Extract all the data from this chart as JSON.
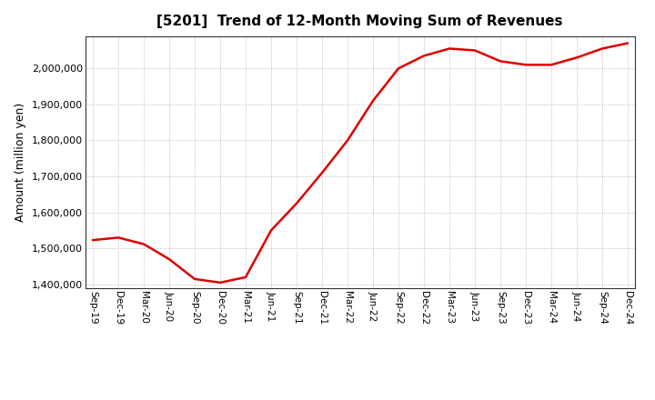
{
  "title": "[5201]  Trend of 12-Month Moving Sum of Revenues",
  "ylabel": "Amount (million yen)",
  "line_color": "#dd0000",
  "background_color": "#ffffff",
  "plot_bg_color": "#ffffff",
  "grid_color": "#999999",
  "ylim": [
    1390000,
    2090000
  ],
  "yticks": [
    1400000,
    1500000,
    1600000,
    1700000,
    1800000,
    1900000,
    2000000
  ],
  "x_labels": [
    "Sep-19",
    "Dec-19",
    "Mar-20",
    "Jun-20",
    "Sep-20",
    "Dec-20",
    "Mar-21",
    "Jun-21",
    "Sep-21",
    "Dec-21",
    "Mar-22",
    "Jun-22",
    "Sep-22",
    "Dec-22",
    "Mar-23",
    "Jun-23",
    "Sep-23",
    "Dec-23",
    "Mar-24",
    "Jun-24",
    "Sep-24",
    "Dec-24"
  ],
  "values": [
    1523000,
    1530000,
    1512000,
    1470000,
    1415000,
    1405000,
    1420000,
    1550000,
    1625000,
    1710000,
    1800000,
    1910000,
    2000000,
    2035000,
    2055000,
    2050000,
    2020000,
    2010000,
    2010000,
    2030000,
    2055000,
    2070000
  ]
}
